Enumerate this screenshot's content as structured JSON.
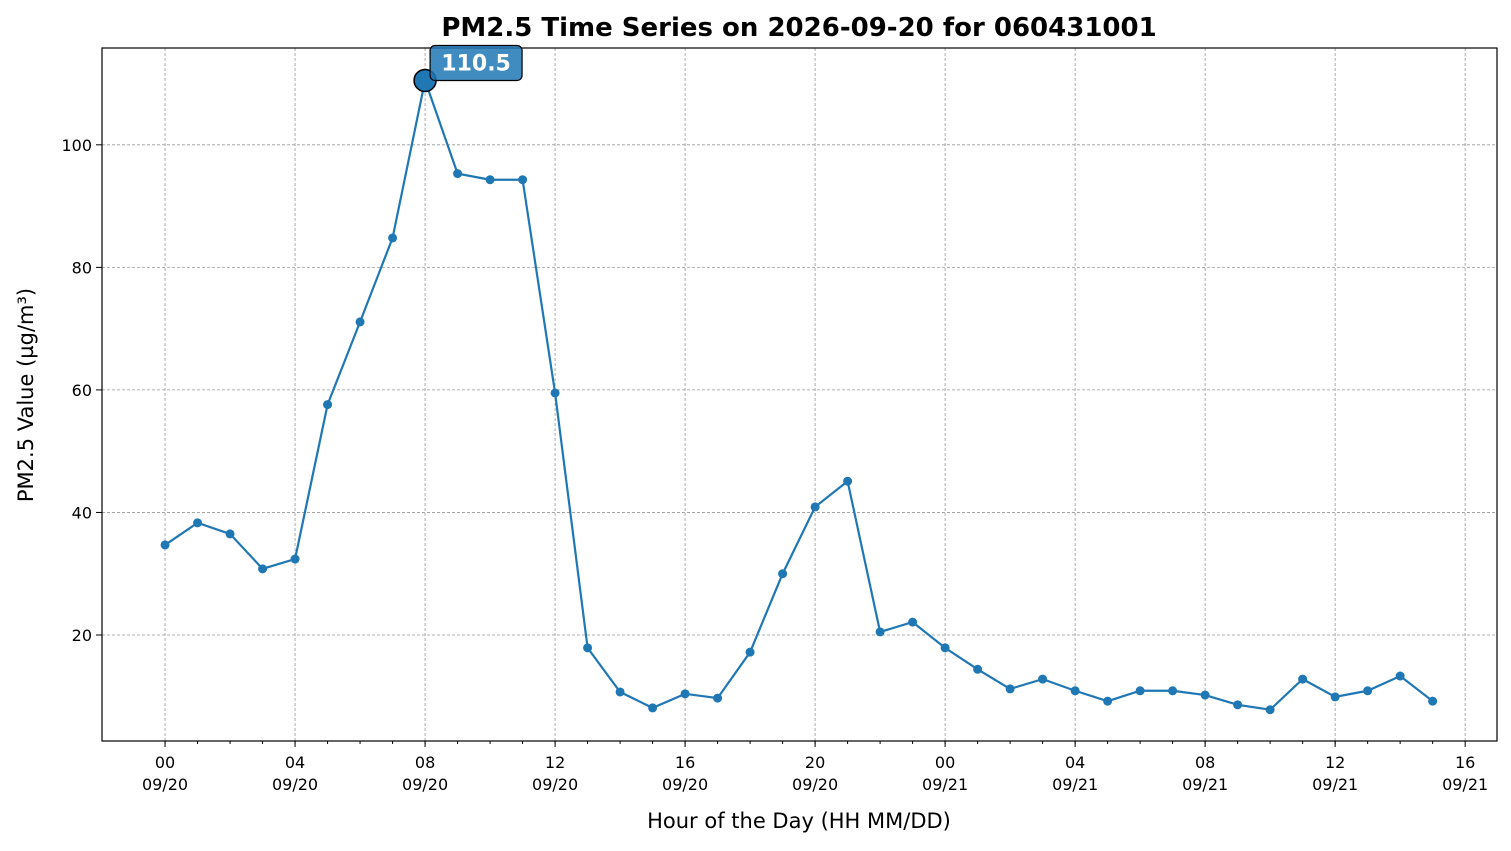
{
  "chart_data": {
    "type": "line",
    "title": "PM2.5 Time Series on 2026-09-20 for 060431001",
    "xlabel": "Hour of the Day (HH MM/DD)",
    "ylabel": "PM2.5 Value (µg/m³)",
    "x": [
      0,
      1,
      2,
      3,
      4,
      5,
      6,
      7,
      8,
      9,
      10,
      11,
      12,
      13,
      14,
      15,
      16,
      17,
      18,
      19,
      20,
      21,
      22,
      23,
      24,
      25,
      26,
      27,
      28,
      29,
      30,
      31,
      32,
      33,
      34,
      35,
      36,
      37,
      38,
      39
    ],
    "series": [
      {
        "color": "#1f77b4",
        "values": [
          34.7,
          38.3,
          36.5,
          30.8,
          32.4,
          57.6,
          71.1,
          84.8,
          110.5,
          95.3,
          94.3,
          94.3,
          59.5,
          17.9,
          10.7,
          8.1,
          10.4,
          9.7,
          17.2,
          30.0,
          40.9,
          45.1,
          20.5,
          22.1,
          17.9,
          14.4,
          11.2,
          12.8,
          10.9,
          9.2,
          10.9,
          10.9,
          10.2,
          8.6,
          7.8,
          12.8,
          9.9,
          10.9,
          13.3,
          9.2
        ]
      }
    ],
    "xlim": [
      -1.94,
      40.98
    ],
    "ylim": [
      2.7,
      115.8
    ],
    "xticks": [
      {
        "value": 0,
        "label": [
          "00",
          "09/20"
        ]
      },
      {
        "value": 4,
        "label": [
          "04",
          "09/20"
        ]
      },
      {
        "value": 8,
        "label": [
          "08",
          "09/20"
        ]
      },
      {
        "value": 12,
        "label": [
          "12",
          "09/20"
        ]
      },
      {
        "value": 16,
        "label": [
          "16",
          "09/20"
        ]
      },
      {
        "value": 20,
        "label": [
          "20",
          "09/20"
        ]
      },
      {
        "value": 24,
        "label": [
          "00",
          "09/21"
        ]
      },
      {
        "value": 28,
        "label": [
          "04",
          "09/21"
        ]
      },
      {
        "value": 32,
        "label": [
          "08",
          "09/21"
        ]
      },
      {
        "value": 36,
        "label": [
          "12",
          "09/21"
        ]
      },
      {
        "value": 40,
        "label": [
          "16",
          "09/21"
        ]
      }
    ],
    "yticks": [
      20,
      40,
      60,
      80,
      100
    ],
    "grid": true
  }
}
